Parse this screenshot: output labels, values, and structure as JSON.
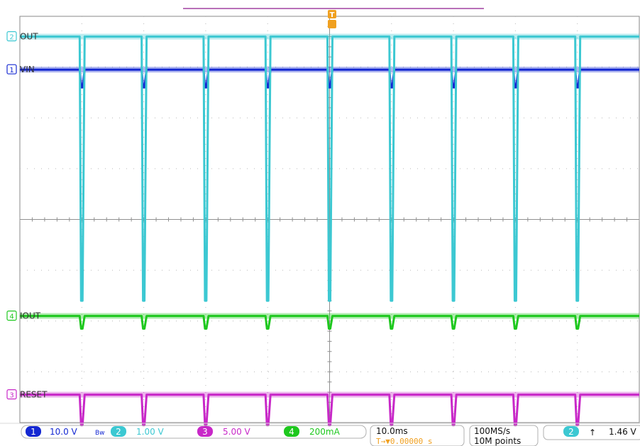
{
  "chart_data": {
    "type": "line",
    "title": "",
    "xlabel": "",
    "ylabel": "",
    "pulse_times": [
      1,
      2,
      3,
      4,
      5,
      6,
      7,
      8,
      9
    ],
    "series": [
      {
        "name": "VIN",
        "channel": "1",
        "color": "#1428d2",
        "base_level_div": 2.95,
        "dip_depth_div": 0.35
      },
      {
        "name": "OUT",
        "channel": "2",
        "color": "#3cc8d2",
        "base_level_div": 3.6,
        "dip_depth_div": 5.2
      },
      {
        "name": "IOUT",
        "channel": "4",
        "color": "#1ec81e",
        "base_level_div": -1.9,
        "dip_depth_div": 0.25
      },
      {
        "name": "RESET",
        "channel": "3",
        "color": "#c828c8",
        "base_level_div": -3.45,
        "dip_depth_div": 0.6
      }
    ]
  },
  "channel_labels": [
    {
      "num": "1",
      "name": "VIN",
      "color": "#1428d2"
    },
    {
      "num": "2",
      "name": "OUT",
      "color": "#3cc8d2"
    },
    {
      "num": "4",
      "name": "IOUT",
      "color": "#1ec81e"
    },
    {
      "num": "3",
      "name": "RESET",
      "color": "#c828c8"
    }
  ],
  "trigger_marker": "T",
  "status": {
    "ch1": {
      "num": "1",
      "scale": "10.0 V",
      "bw": "Bw",
      "color": "#1428d2"
    },
    "ch2": {
      "num": "2",
      "scale": "1.00 V",
      "color": "#3cc8d2"
    },
    "ch3": {
      "num": "3",
      "scale": "5.00 V",
      "color": "#c828c8"
    },
    "ch4": {
      "num": "4",
      "scale": "200mA",
      "color": "#1ec81e"
    },
    "timebase": "10.0ms",
    "trigger_pos": "T→▼0.00000 s",
    "sample_rate": "100MS/s",
    "record_length": "10M points",
    "trig_ch": "2",
    "trig_slope": "↑",
    "trig_level": "1.46 V"
  }
}
